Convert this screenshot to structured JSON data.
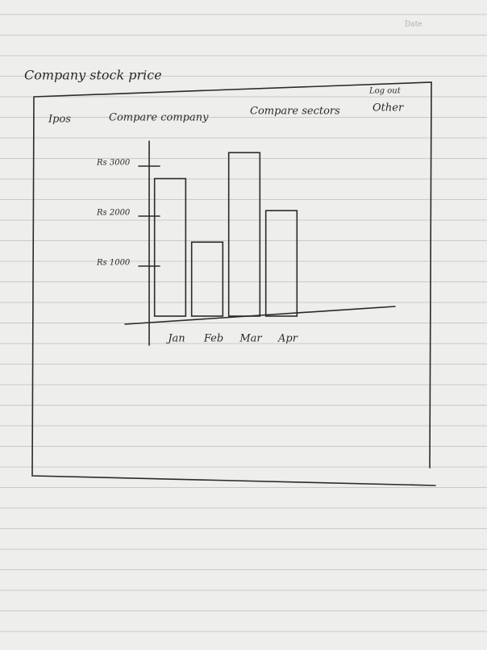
{
  "header": {
    "date_label": "Date"
  },
  "title": "Company stock price",
  "nav": {
    "items": [
      "Ipos",
      "Compare company",
      "Compare sectors",
      "Other"
    ],
    "logout": "Log out"
  },
  "chart_data": {
    "type": "bar",
    "categories": [
      "Jan",
      "Feb",
      "Mar",
      "Apr"
    ],
    "values": [
      2750,
      1480,
      3270,
      2110
    ],
    "color": "none",
    "ylim": [
      0,
      3500
    ],
    "yticks": [
      {
        "value": 1000,
        "label": "Rs 1000"
      },
      {
        "value": 2000,
        "label": "Rs 2000"
      },
      {
        "value": 3000,
        "label": "Rs 3000"
      }
    ],
    "grid": false
  }
}
